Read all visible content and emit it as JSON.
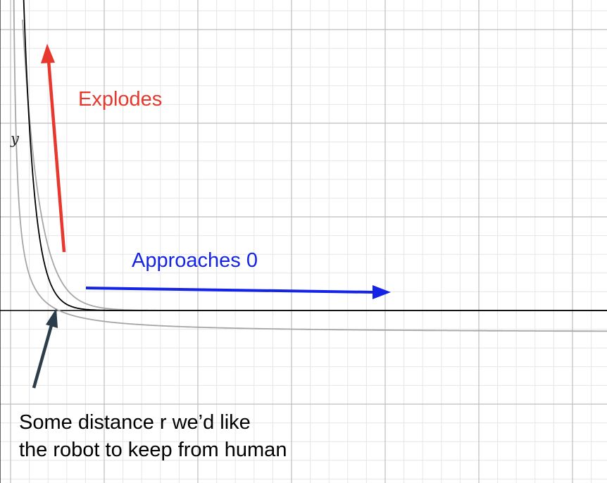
{
  "axis": {
    "y_label": "y"
  },
  "annotations": {
    "explodes": {
      "text": "Explodes",
      "color": "#e8372c"
    },
    "approaches": {
      "text": "Approaches 0",
      "color": "#1424e6"
    },
    "distance_line1": "Some distance r we’d like",
    "distance_line2": "the robot to keep from human"
  },
  "colors": {
    "grid_major": "#bdbdbd",
    "grid_minor": "#e6e6e6",
    "axis": "#000000",
    "curve_main": "#000000",
    "curve_secondary": "#a6a6a6",
    "arrow_explodes": "#e8372c",
    "arrow_approaches": "#1424e6",
    "arrow_distance": "#2b3d4a"
  }
}
